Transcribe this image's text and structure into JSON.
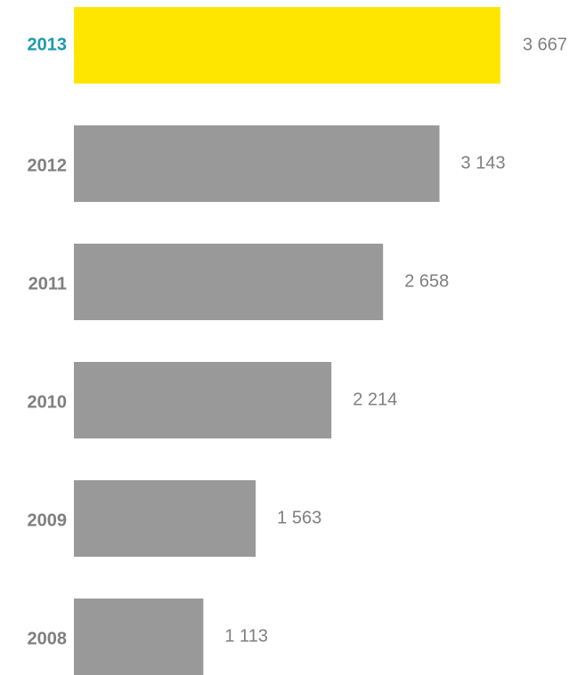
{
  "chart_data": {
    "type": "hbar",
    "categories": [
      "2013",
      "2012",
      "2011",
      "2010",
      "2009",
      "2008"
    ],
    "values": [
      3667,
      3143,
      2658,
      2214,
      1563,
      1113
    ],
    "value_labels": [
      "3 667",
      "3 143",
      "2 658",
      "2 214",
      "1 563",
      "1 113"
    ],
    "colors": [
      "#ffe600",
      "#999999",
      "#999999",
      "#999999",
      "#999999",
      "#999999"
    ],
    "category_colors": [
      "#1a9bb0",
      "#7f7f7f",
      "#7f7f7f",
      "#7f7f7f",
      "#7f7f7f",
      "#7f7f7f"
    ],
    "value_label_color": "#7f7f7f"
  }
}
